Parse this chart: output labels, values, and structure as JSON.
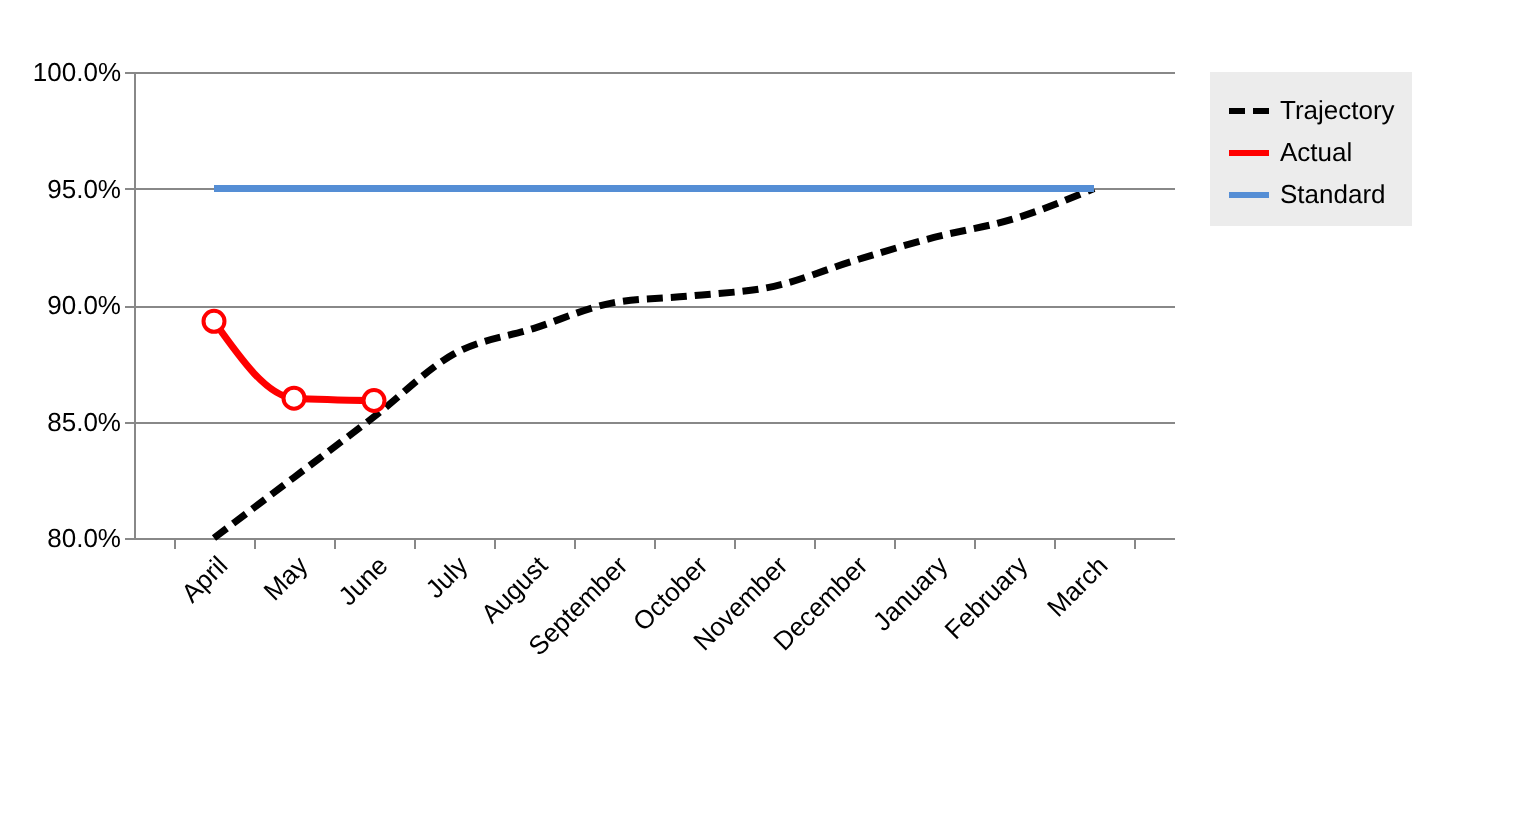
{
  "chart_data": {
    "type": "line",
    "categories": [
      "April",
      "May",
      "June",
      "July",
      "August",
      "September",
      "October",
      "November",
      "December",
      "January",
      "February",
      "March"
    ],
    "series": [
      {
        "name": "Trajectory",
        "color": "#000000",
        "line_style": "dashed",
        "marker": "none",
        "values": [
          80.0,
          82.6,
          85.2,
          87.9,
          89.0,
          90.1,
          90.4,
          90.8,
          91.9,
          92.9,
          93.7,
          95.0
        ]
      },
      {
        "name": "Actual",
        "color": "#ff0000",
        "line_style": "solid",
        "marker": "circle",
        "values": [
          89.3,
          86.0,
          85.9,
          null,
          null,
          null,
          null,
          null,
          null,
          null,
          null,
          null
        ]
      },
      {
        "name": "Standard",
        "color": "#558ed5",
        "line_style": "solid",
        "marker": "none",
        "values": [
          95,
          95,
          95,
          95,
          95,
          95,
          95,
          95,
          95,
          95,
          95,
          95
        ]
      }
    ],
    "ylim": [
      80,
      100
    ],
    "yticks": [
      {
        "value": 80,
        "label": "80.0%"
      },
      {
        "value": 85,
        "label": "85.0%"
      },
      {
        "value": 90,
        "label": "90.0%"
      },
      {
        "value": 95,
        "label": "95.0%"
      },
      {
        "value": 100,
        "label": "100.0%"
      }
    ],
    "grid": "y",
    "legend": "right"
  }
}
